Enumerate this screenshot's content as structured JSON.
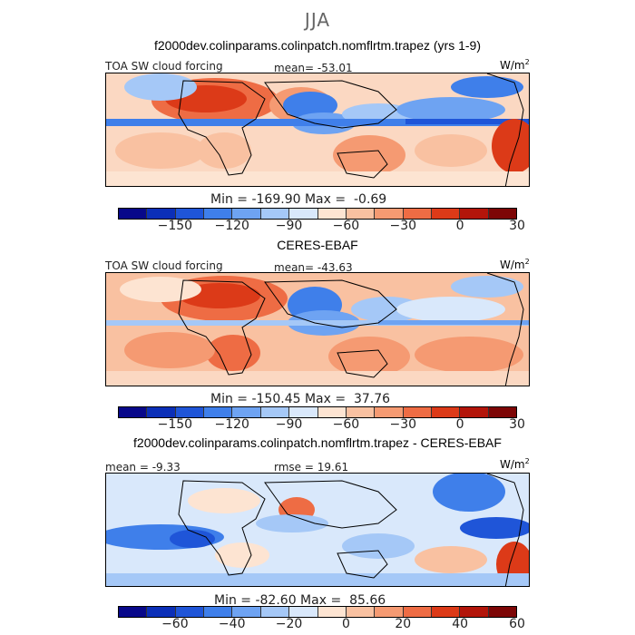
{
  "title": "JJA",
  "panels": [
    {
      "case_title": "f2000dev.colinparams.colinpatch.nomflrtm.trapez (yrs 1-9)",
      "left_label": "TOA SW cloud forcing",
      "center_label": "mean= -53.01",
      "units": "W/m",
      "units_sup": "2",
      "minmax": "Min = -169.90 Max =  -0.69",
      "ticks": [
        "-150",
        "-120",
        "-90",
        "-60",
        "-30",
        "0",
        "30"
      ]
    },
    {
      "case_title": "CERES-EBAF",
      "left_label": "TOA SW cloud forcing",
      "center_label": "mean= -43.63",
      "units": "W/m",
      "units_sup": "2",
      "minmax": "Min = -150.45 Max =  37.76",
      "ticks": [
        "-150",
        "-120",
        "-90",
        "-60",
        "-30",
        "0",
        "30"
      ]
    },
    {
      "case_title": "f2000dev.colinparams.colinpatch.nomflrtm.trapez - CERES-EBAF",
      "left_label": "mean =  -9.33",
      "center_label": "rmse =  19.61",
      "units": "W/m",
      "units_sup": "2",
      "minmax": "Min = -82.60 Max =  85.66",
      "ticks": [
        "-60",
        "-40",
        "-20",
        "0",
        "20",
        "40",
        "60"
      ]
    }
  ],
  "colorbar_colors": [
    "#08088a",
    "#0b2fb8",
    "#1f55d8",
    "#3f7fea",
    "#6ea3f2",
    "#a5c8f7",
    "#d9e8fb",
    "#fde4d2",
    "#f9c1a1",
    "#f59a72",
    "#ee6c44",
    "#dc3a18",
    "#b3150a",
    "#7d0606"
  ]
}
